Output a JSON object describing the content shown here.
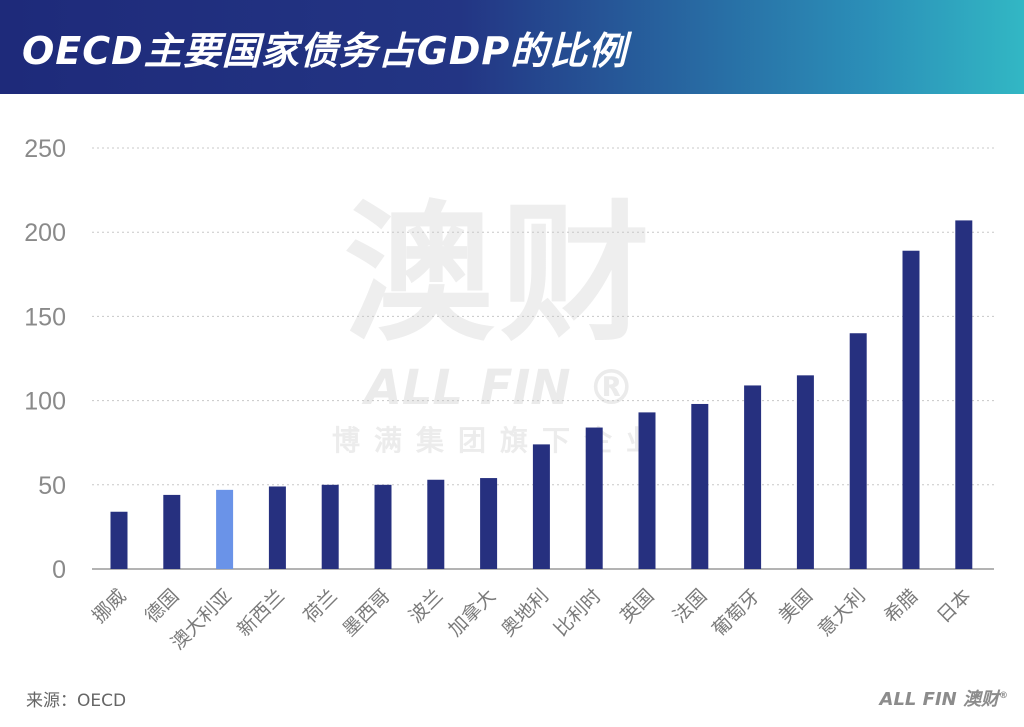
{
  "header": {
    "title": "OECD主要国家债务占GDP的比例"
  },
  "watermark": {
    "big": "澳财",
    "mid": "ALL FIN ®",
    "small": "博满集团旗下企业"
  },
  "footer": {
    "source": "来源：OECD",
    "logo": "ALL FIN 澳财",
    "logo_mark": "®"
  },
  "colors": {
    "bar": "#26307f",
    "highlight": "#6a93e8",
    "grid": "#c8c8c8",
    "axis": "#9a9a9a"
  },
  "chart_data": {
    "type": "bar",
    "title": "OECD主要国家债务占GDP的比例",
    "xlabel": "",
    "ylabel": "",
    "ylim": [
      0,
      250
    ],
    "yticks": [
      0,
      50,
      100,
      150,
      200,
      250
    ],
    "grid": true,
    "legend": "none",
    "highlight_category": "澳大利亚",
    "categories": [
      "挪威",
      "德国",
      "澳大利亚",
      "新西兰",
      "荷兰",
      "墨西哥",
      "波兰",
      "加拿大",
      "奥地利",
      "比利时",
      "英国",
      "法国",
      "葡萄牙",
      "美国",
      "意大利",
      "希腊",
      "日本"
    ],
    "values": [
      34,
      44,
      47,
      49,
      50,
      50,
      53,
      54,
      74,
      84,
      93,
      98,
      109,
      115,
      140,
      189,
      207
    ]
  }
}
